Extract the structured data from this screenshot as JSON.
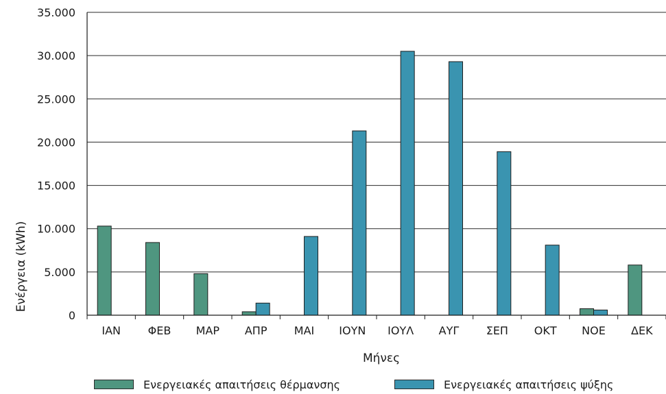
{
  "chart_data": {
    "type": "bar",
    "xlabel": "Μήνες",
    "ylabel": "Ενέργεια (kWh)",
    "ylim": [
      0,
      35000
    ],
    "yticks": [
      "0",
      "5.000",
      "10.000",
      "15.000",
      "20.000",
      "25.000",
      "30.000",
      "35.000"
    ],
    "categories": [
      "ΙΑΝ",
      "ΦΕΒ",
      "ΜΑΡ",
      "ΑΠΡ",
      "ΜΑΙ",
      "ΙΟΥΝ",
      "ΙΟΥΛ",
      "ΑΥΓ",
      "ΣΕΠ",
      "ΟΚΤ",
      "ΝΟΕ",
      "ΔΕΚ"
    ],
    "grid": "horizontal",
    "legend_position": "bottom",
    "series": [
      {
        "name": "Ενεργειακές απαιτήσεις θέρμανσης",
        "color": "#4f9680",
        "values": [
          10300,
          8400,
          4800,
          400,
          0,
          0,
          0,
          0,
          0,
          0,
          750,
          5800
        ]
      },
      {
        "name": "Ενεργειακές απαιτήσεις ψύξης",
        "color": "#3a94b0",
        "values": [
          0,
          0,
          0,
          1400,
          9100,
          21300,
          30500,
          29300,
          18900,
          8100,
          600,
          0
        ]
      }
    ]
  }
}
